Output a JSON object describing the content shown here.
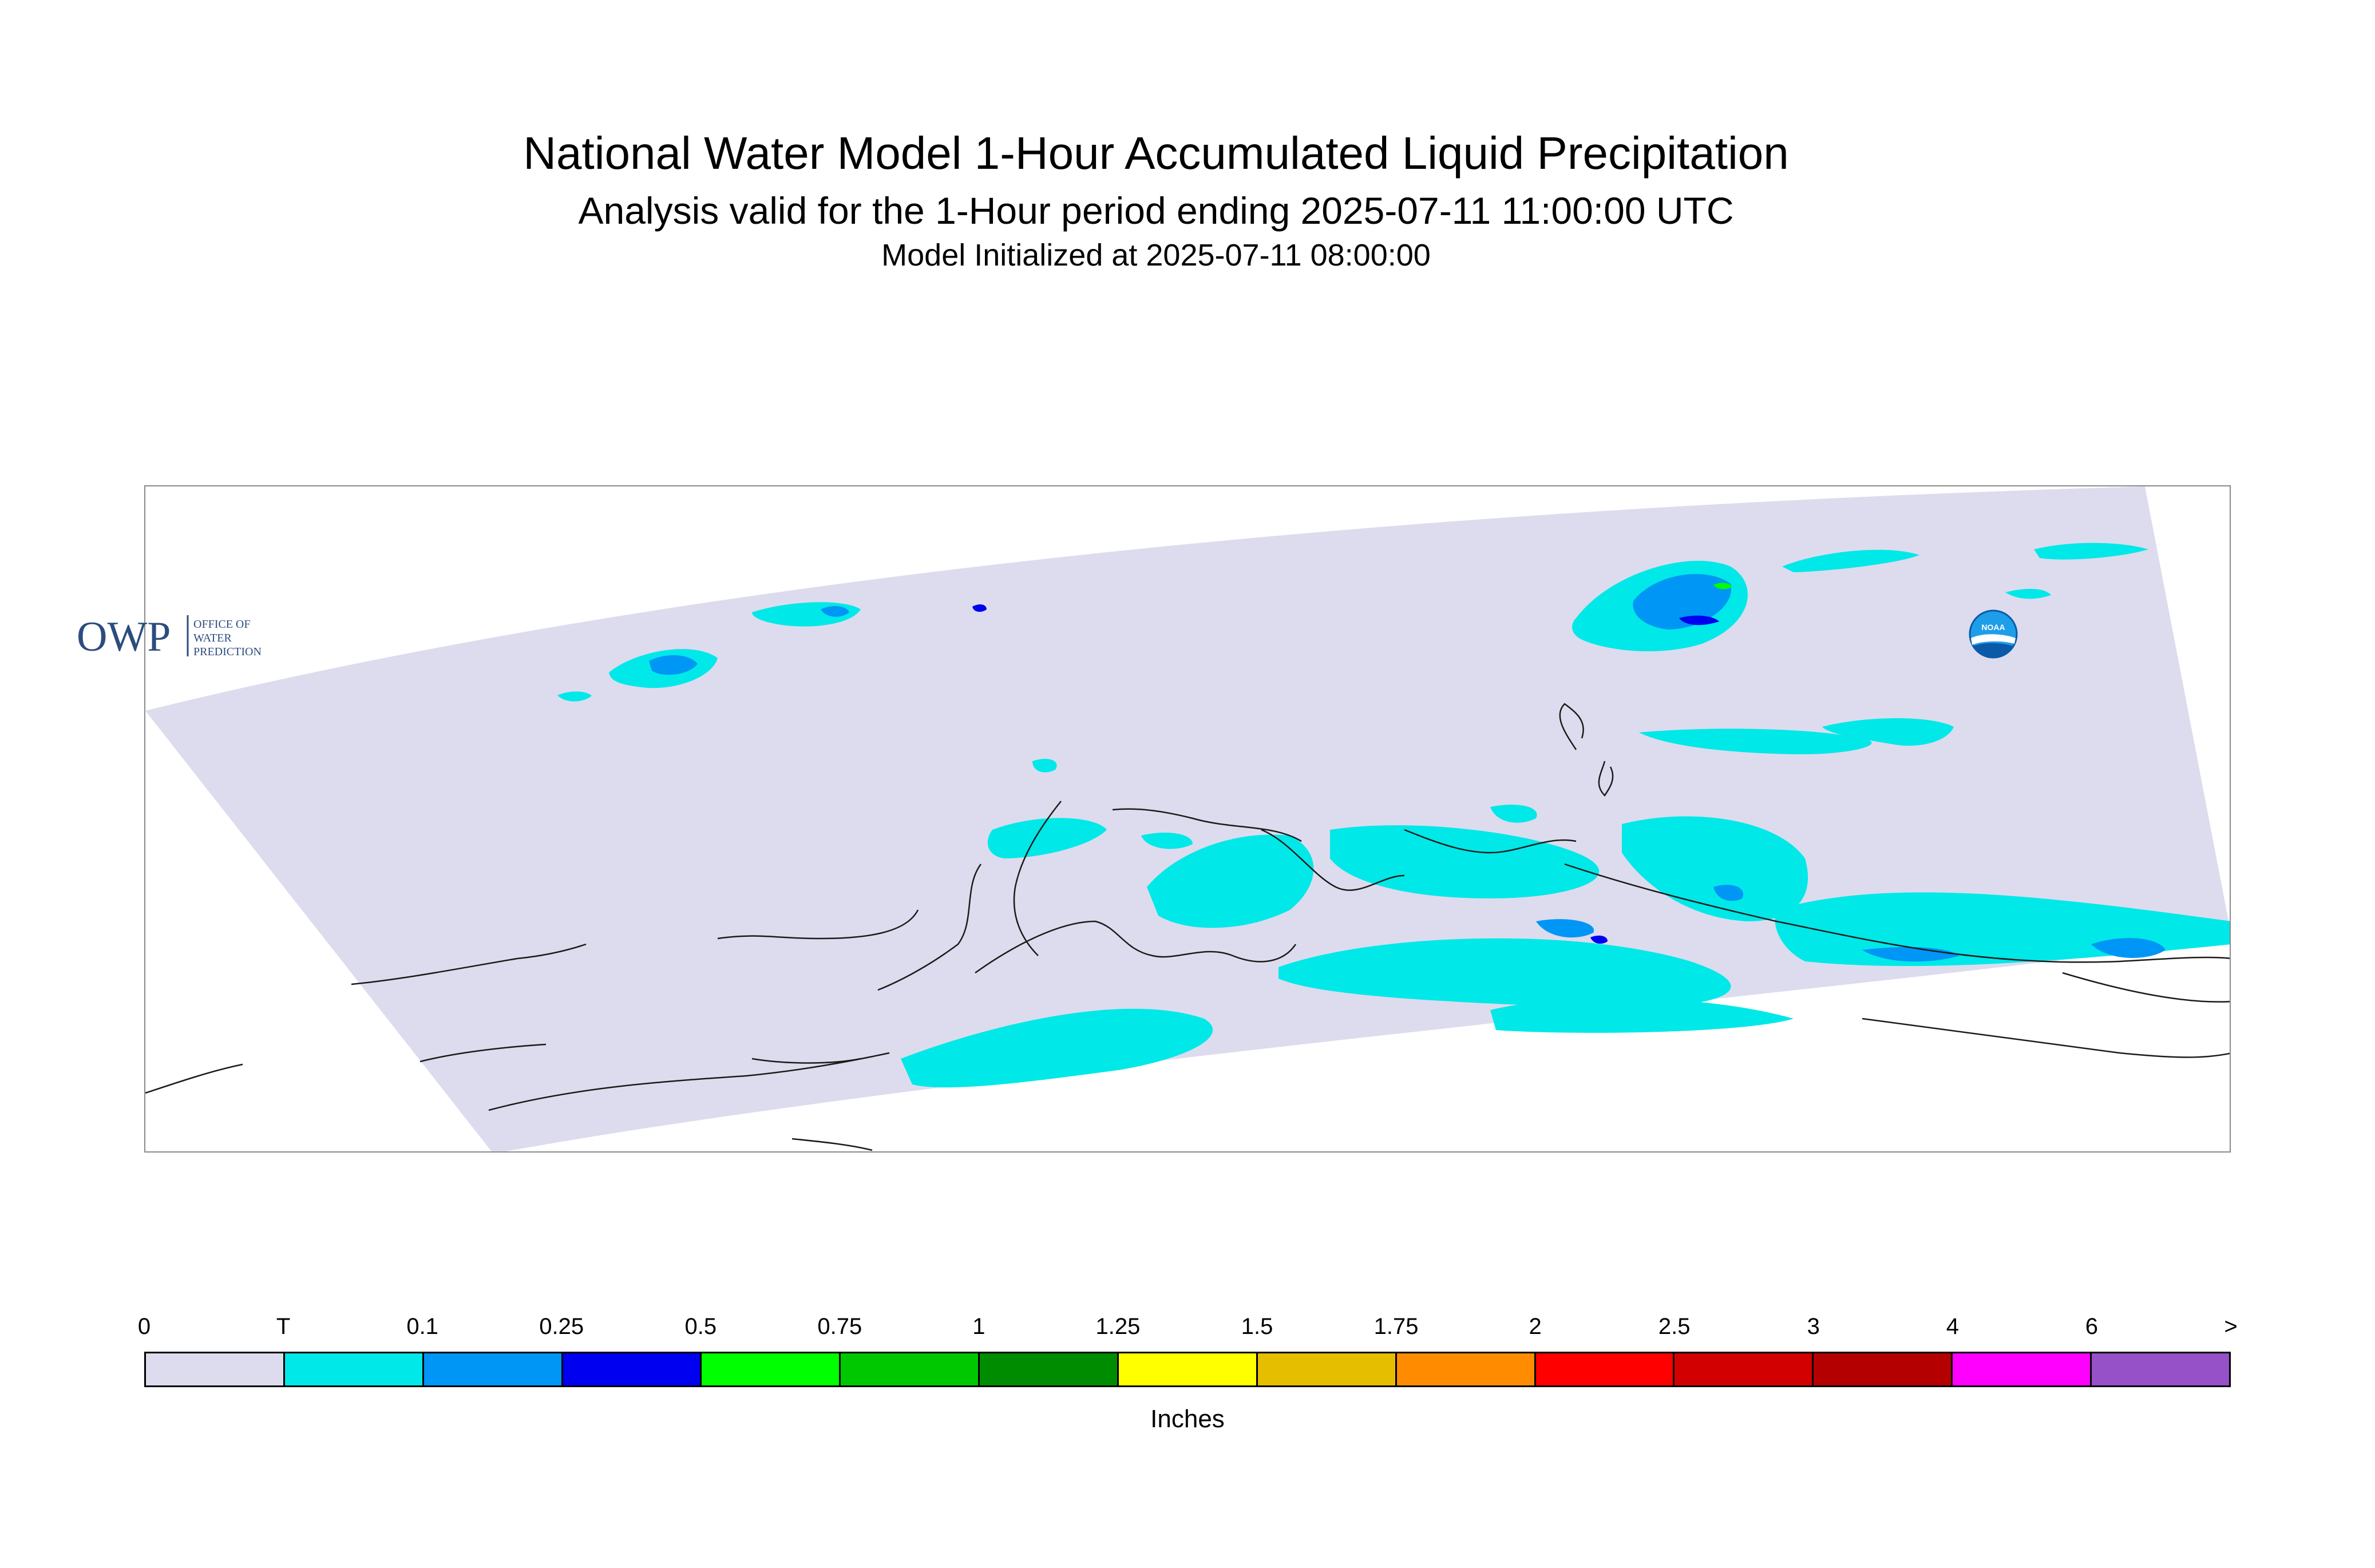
{
  "header": {
    "title": "National Water Model 1-Hour Accumulated Liquid Precipitation",
    "subtitle": "Analysis valid for the 1-Hour period ending 2025-07-11 11:00:00 UTC",
    "init_line": "Model Initialized at 2025-07-11 08:00:00"
  },
  "logos": {
    "owp_mark": "OWP",
    "owp_words": [
      "OFFICE OF",
      "WATER",
      "PREDICTION"
    ],
    "noaa_mark": "NOAA"
  },
  "legend": {
    "units": "Inches",
    "ticks": [
      "0",
      "T",
      "0.1",
      "0.25",
      "0.5",
      "0.75",
      "1",
      "1.25",
      "1.5",
      "1.75",
      "2",
      "2.5",
      "3",
      "4",
      "6",
      ">"
    ],
    "colors": [
      "#dcdcee",
      "#00e8e8",
      "#0096f5",
      "#0000f0",
      "#00ff00",
      "#00c800",
      "#008c00",
      "#ffff00",
      "#e6be00",
      "#ff8c00",
      "#ff0000",
      "#d20000",
      "#b40000",
      "#ff00ff",
      "#9650c8"
    ]
  }
}
